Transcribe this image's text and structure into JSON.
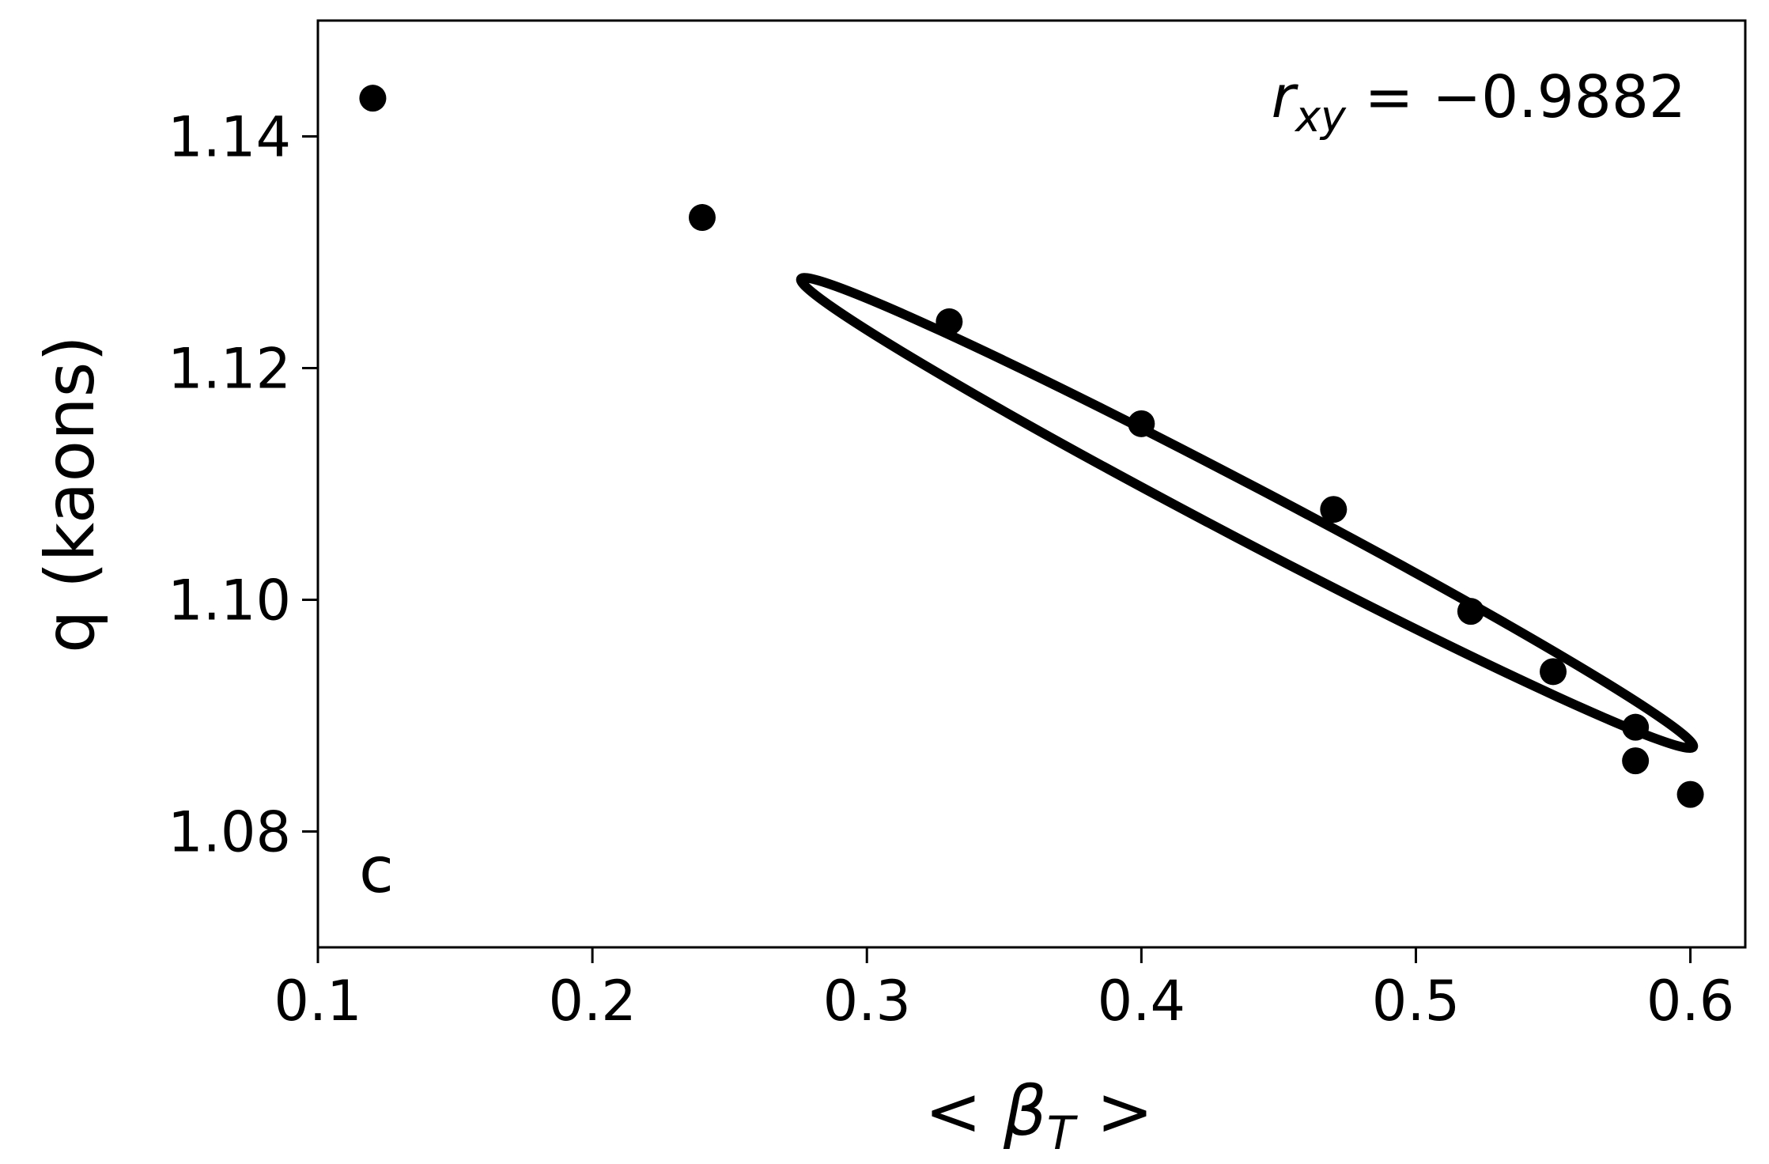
{
  "chart_data": {
    "type": "scatter",
    "title": "",
    "xlabel": "< βT >",
    "xlabel_parts": {
      "open": "< ",
      "symbol": "β",
      "subscript": "T",
      "close": " >"
    },
    "ylabel": "q (kaons)",
    "xlim": [
      0.1,
      0.62
    ],
    "ylim": [
      1.07,
      1.15
    ],
    "xticks": [
      0.1,
      0.2,
      0.3,
      0.4,
      0.5,
      0.6
    ],
    "xtick_labels": [
      "0.1",
      "0.2",
      "0.3",
      "0.4",
      "0.5",
      "0.6"
    ],
    "yticks": [
      1.08,
      1.1,
      1.12,
      1.14
    ],
    "ytick_labels": [
      "1.08",
      "1.10",
      "1.12",
      "1.14"
    ],
    "grid": false,
    "legend": "none",
    "marker_color": "#000000",
    "points": [
      {
        "x": 0.12,
        "y": 1.1433
      },
      {
        "x": 0.24,
        "y": 1.133
      },
      {
        "x": 0.33,
        "y": 1.124
      },
      {
        "x": 0.4,
        "y": 1.1152
      },
      {
        "x": 0.47,
        "y": 1.1078
      },
      {
        "x": 0.52,
        "y": 1.099
      },
      {
        "x": 0.55,
        "y": 1.0938
      },
      {
        "x": 0.58,
        "y": 1.089
      },
      {
        "x": 0.58,
        "y": 1.0861
      },
      {
        "x": 0.6,
        "y": 1.0832
      }
    ],
    "ellipse": {
      "center": {
        "x": 0.4385,
        "y": 1.1075
      },
      "endpoint_a": {
        "x": 0.276,
        "y": 1.1277
      },
      "endpoint_b": {
        "x": 0.601,
        "y": 1.0873
      },
      "semi_minor_fraction": 0.053
    },
    "annotation": {
      "symbol": "r",
      "subscript": "xy",
      "equals": " = ",
      "value": "−0.9882"
    },
    "panel_label": "c"
  }
}
